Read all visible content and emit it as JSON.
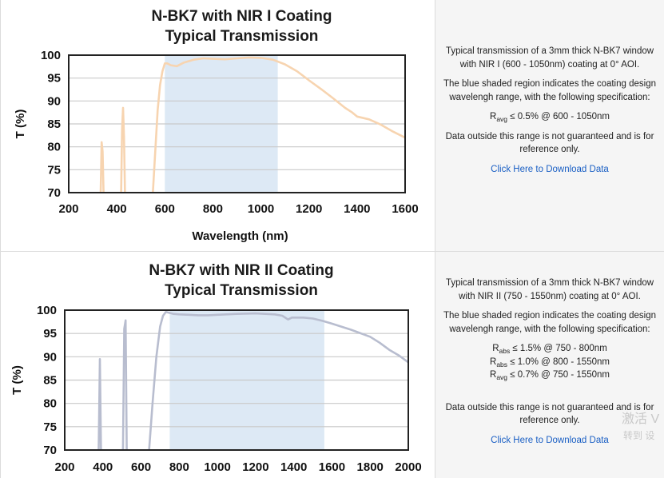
{
  "charts": [
    {
      "title_lines": [
        "N-BK7 with NIR I Coating",
        "Typical Transmission"
      ],
      "ylabel": "T (%)",
      "xlabel": "Wavelength (nm)",
      "info": {
        "description": "Typical transmission of a 3mm thick N-BK7 window with NIR I (600 - 1050nm) coating at 0° AOI.",
        "shaded_note": "The blue shaded region indicates the coating design wavelengh range, with the following specification:",
        "specs": [
          {
            "sym": "R",
            "sub": "avg",
            "text": " ≤ 0.5% @ 600 - 1050nm"
          }
        ],
        "outside_note": "Data outside this range is not guaranteed and is for reference only.",
        "download_label": "Click Here to Download Data"
      }
    },
    {
      "title_lines": [
        "N-BK7 with NIR II Coating",
        "Typical Transmission"
      ],
      "ylabel": "T (%)",
      "xlabel": "",
      "info": {
        "description": "Typical transmission of a 3mm thick N-BK7 window with NIR II (750 - 1550nm) coating at 0° AOI.",
        "shaded_note": "The blue shaded region indicates the coating design wavelengh range, with the following specification:",
        "specs": [
          {
            "sym": "R",
            "sub": "abs",
            "text": " ≤ 1.5% @ 750 - 800nm"
          },
          {
            "sym": "R",
            "sub": "abs",
            "text": " ≤ 1.0% @ 800 - 1550nm"
          },
          {
            "sym": "R",
            "sub": "avg",
            "text": " ≤ 0.7% @ 750 - 1550nm"
          }
        ],
        "outside_note": "Data outside this range is not guaranteed and is for reference only.",
        "download_label": "Click Here to Download Data"
      }
    }
  ],
  "watermark": {
    "line1": "激活 V",
    "line2": "转到 设"
  },
  "chart_data": [
    {
      "type": "line",
      "title": "N-BK7 with NIR I Coating Typical Transmission",
      "xlabel": "Wavelength (nm)",
      "ylabel": "T (%)",
      "xlim": [
        200,
        1600
      ],
      "ylim": [
        70,
        100
      ],
      "xticks": [
        200,
        400,
        600,
        800,
        1000,
        1200,
        1400,
        1600
      ],
      "yticks": [
        70,
        75,
        80,
        85,
        90,
        95,
        100
      ],
      "grid": "horizontal",
      "shaded_range": [
        600,
        1070
      ],
      "shade_color": "#dde9f5",
      "line_color": "#f7d4b0",
      "series": [
        {
          "x": [
            333,
            337,
            341,
            345
          ],
          "y": [
            70,
            81,
            79,
            70
          ]
        },
        {
          "x": [
            418,
            422,
            426,
            430,
            434
          ],
          "y": [
            70,
            84,
            88.5,
            82,
            70
          ]
        },
        {
          "x": [
            550,
            560,
            570,
            580,
            590,
            600,
            610,
            625,
            650,
            680,
            720,
            760,
            800,
            850,
            900,
            950,
            1000,
            1050,
            1100,
            1150,
            1200,
            1250,
            1300,
            1350,
            1380,
            1400,
            1450,
            1500,
            1550,
            1600
          ],
          "y": [
            70,
            79,
            88,
            93.5,
            96.5,
            98.2,
            98.2,
            97.8,
            97.6,
            98.4,
            99.0,
            99.3,
            99.2,
            99.1,
            99.3,
            99.5,
            99.4,
            99.0,
            98.0,
            96.5,
            94.5,
            92.6,
            90.6,
            88.5,
            87.5,
            86.6,
            86.0,
            84.8,
            83.3,
            82.0
          ]
        }
      ]
    },
    {
      "type": "line",
      "title": "N-BK7 with NIR II Coating Typical Transmission",
      "xlabel": "",
      "ylabel": "T (%)",
      "xlim": [
        200,
        2000
      ],
      "ylim": [
        70,
        100
      ],
      "xticks": [
        200,
        400,
        600,
        800,
        1000,
        1200,
        1400,
        1600,
        1800,
        2000
      ],
      "yticks": [
        70,
        75,
        80,
        85,
        90,
        95,
        100
      ],
      "grid": "horizontal",
      "shaded_range": [
        750,
        1560
      ],
      "shade_color": "#dde9f5",
      "line_color": "#b8bdcf",
      "series": [
        {
          "x": [
            378,
            384,
            390
          ],
          "y": [
            70,
            89.5,
            70
          ]
        },
        {
          "x": [
            505,
            512,
            519,
            525
          ],
          "y": [
            70,
            96,
            97.8,
            70
          ]
        },
        {
          "x": [
            642,
            660,
            680,
            700,
            715,
            730,
            750,
            770,
            800,
            850,
            900,
            950,
            1000,
            1100,
            1200,
            1300,
            1340,
            1370,
            1390,
            1450,
            1500,
            1550,
            1600,
            1700,
            1800,
            1850,
            1900,
            1950,
            2000
          ],
          "y": [
            70,
            80,
            90,
            96.5,
            98.8,
            99.6,
            99.4,
            99.2,
            99.1,
            99.0,
            98.9,
            98.9,
            99.0,
            99.2,
            99.3,
            99.1,
            98.8,
            98.0,
            98.4,
            98.4,
            98.2,
            97.7,
            97.1,
            95.8,
            94.3,
            93.0,
            91.5,
            90.3,
            88.8
          ]
        }
      ]
    }
  ]
}
